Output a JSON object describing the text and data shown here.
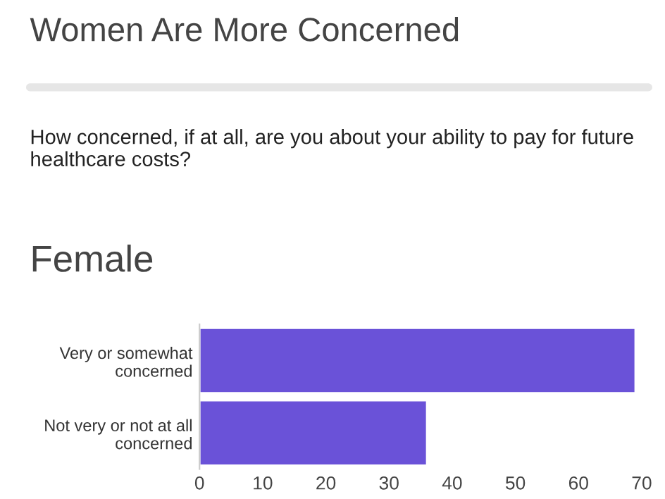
{
  "chart_data": {
    "type": "bar",
    "orientation": "horizontal",
    "title": "Women Are More Concerned",
    "subtitle": "How concerned, if at all, are you about your ability to pay for future healthcare costs?",
    "annotations": [
      "Female"
    ],
    "categories": [
      "Very or somewhat\nconcerned",
      "Not very or not at all\nconcerned"
    ],
    "values": [
      69,
      36
    ],
    "color": "#6a52d8",
    "xlim": [
      0,
      70
    ],
    "xticks": [
      0,
      10,
      20,
      30,
      40,
      50,
      60,
      70
    ],
    "grid": false,
    "legend": false
  }
}
